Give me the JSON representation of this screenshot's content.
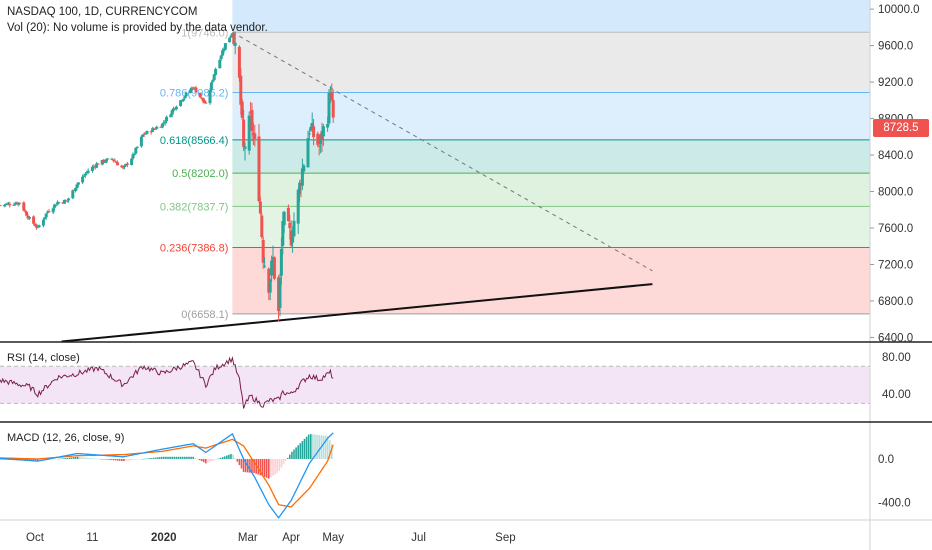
{
  "header": {
    "symbol_line": "NASDAQ 100, 1D, CURRENCYCOM",
    "volume_note": "Vol (20): No volume is provided by the data vendor."
  },
  "last_price": "8728.5",
  "colors": {
    "up": "#26a69a",
    "down": "#ef5350",
    "fib_1": "#bdbdbd",
    "fib_786": "#64b5f6",
    "fib_618": "#009688",
    "fib_5": "#4caf50",
    "fib_382": "#81c784",
    "fib_236": "#f44336",
    "fib_0": "#9e9e9e",
    "rsi_line": "#7b1f4a",
    "rsi_band": "#f3e5f5",
    "macd_line": "#2196f3",
    "signal_line": "#ff6d00"
  },
  "panes": {
    "rsi_label": "RSI (14, close)",
    "macd_label": "MACD (12, 26, close, 9)"
  },
  "chart_data": {
    "type": "candlestick",
    "price_axis": {
      "ticks": [
        "10000.0",
        "9600.0",
        "9200.0",
        "8800.0",
        "8400.0",
        "8000.0",
        "7600.0",
        "7200.0",
        "6800.0",
        "6400.0"
      ],
      "range": [
        6350,
        10100
      ]
    },
    "time_axis": {
      "ticks": [
        "Oct",
        "11",
        "2020",
        "Mar",
        "Apr",
        "May",
        "Jul",
        "Sep"
      ],
      "bold_tick": "2020"
    },
    "fib_levels": [
      {
        "ratio": 1,
        "value": 9746.0,
        "label": "1(9746.0)"
      },
      {
        "ratio": 0.786,
        "value": 9085.2,
        "label": "0.786(9085.2)"
      },
      {
        "ratio": 0.618,
        "value": 8566.4,
        "label": "0.618(8566.4)"
      },
      {
        "ratio": 0.5,
        "value": 8202.0,
        "label": "0.5(8202.0)"
      },
      {
        "ratio": 0.382,
        "value": 7837.7,
        "label": "0.382(7837.7)"
      },
      {
        "ratio": 0.236,
        "value": 7386.8,
        "label": "0.236(7386.8)"
      },
      {
        "ratio": 0,
        "value": 6658.1,
        "label": "0(6658.1)"
      }
    ],
    "fib_top_band": 10100,
    "price_series": [
      {
        "date": "2019-09-06",
        "close": 7850
      },
      {
        "date": "2019-09-20",
        "close": 7880
      },
      {
        "date": "2019-09-27",
        "close": 7700
      },
      {
        "date": "2019-10-03",
        "close": 7600
      },
      {
        "date": "2019-10-10",
        "close": 7780
      },
      {
        "date": "2019-10-17",
        "close": 7880
      },
      {
        "date": "2019-10-24",
        "close": 7900
      },
      {
        "date": "2019-10-31",
        "close": 8080
      },
      {
        "date": "2019-11-08",
        "close": 8230
      },
      {
        "date": "2019-11-15",
        "close": 8310
      },
      {
        "date": "2019-11-25",
        "close": 8360
      },
      {
        "date": "2019-12-03",
        "close": 8250
      },
      {
        "date": "2019-12-10",
        "close": 8390
      },
      {
        "date": "2019-12-17",
        "close": 8620
      },
      {
        "date": "2019-12-31",
        "close": 8740
      },
      {
        "date": "2020-01-10",
        "close": 8950
      },
      {
        "date": "2020-01-22",
        "close": 9150
      },
      {
        "date": "2020-01-31",
        "close": 8950
      },
      {
        "date": "2020-02-07",
        "close": 9350
      },
      {
        "date": "2020-02-14",
        "close": 9620
      },
      {
        "date": "2020-02-19",
        "close": 9746
      },
      {
        "date": "2020-02-24",
        "close": 9200
      },
      {
        "date": "2020-02-27",
        "close": 8450
      },
      {
        "date": "2020-03-03",
        "close": 8800
      },
      {
        "date": "2020-03-06",
        "close": 8500
      },
      {
        "date": "2020-03-09",
        "close": 8000
      },
      {
        "date": "2020-03-12",
        "close": 7300
      },
      {
        "date": "2020-03-16",
        "close": 6990
      },
      {
        "date": "2020-03-19",
        "close": 7250
      },
      {
        "date": "2020-03-23",
        "close": 6658
      },
      {
        "date": "2020-03-26",
        "close": 7700
      },
      {
        "date": "2020-04-01",
        "close": 7500
      },
      {
        "date": "2020-04-08",
        "close": 8150
      },
      {
        "date": "2020-04-14",
        "close": 8700
      },
      {
        "date": "2020-04-21",
        "close": 8500
      },
      {
        "date": "2020-04-27",
        "close": 8850
      },
      {
        "date": "2020-04-29",
        "close": 9150
      },
      {
        "date": "2020-05-01",
        "close": 8728.5
      }
    ],
    "trendlines": [
      {
        "style": "solid",
        "start": {
          "date": "2019-10-20",
          "price": 6355
        },
        "end": {
          "date": "2020-12-15",
          "price": 6985
        }
      },
      {
        "style": "dashed",
        "start": {
          "date": "2020-02-19",
          "price": 9746
        },
        "end": {
          "date": "2020-12-15",
          "price": 7130
        }
      }
    ],
    "rsi": {
      "ticks": [
        "80.00",
        "40.00"
      ],
      "range": [
        10,
        95
      ],
      "band": [
        70,
        30
      ],
      "values": [
        {
          "date": "2019-09-06",
          "value": 55
        },
        {
          "date": "2019-09-27",
          "value": 48
        },
        {
          "date": "2019-10-03",
          "value": 40
        },
        {
          "date": "2019-10-17",
          "value": 58
        },
        {
          "date": "2019-10-31",
          "value": 62
        },
        {
          "date": "2019-11-15",
          "value": 68
        },
        {
          "date": "2019-12-03",
          "value": 50
        },
        {
          "date": "2019-12-17",
          "value": 70
        },
        {
          "date": "2019-12-31",
          "value": 62
        },
        {
          "date": "2020-01-10",
          "value": 68
        },
        {
          "date": "2020-01-22",
          "value": 74
        },
        {
          "date": "2020-01-31",
          "value": 50
        },
        {
          "date": "2020-02-07",
          "value": 68
        },
        {
          "date": "2020-02-19",
          "value": 78
        },
        {
          "date": "2020-02-24",
          "value": 55
        },
        {
          "date": "2020-02-27",
          "value": 26
        },
        {
          "date": "2020-03-03",
          "value": 38
        },
        {
          "date": "2020-03-09",
          "value": 31
        },
        {
          "date": "2020-03-12",
          "value": 28
        },
        {
          "date": "2020-03-16",
          "value": 33
        },
        {
          "date": "2020-03-23",
          "value": 34
        },
        {
          "date": "2020-03-26",
          "value": 42
        },
        {
          "date": "2020-04-01",
          "value": 40
        },
        {
          "date": "2020-04-08",
          "value": 52
        },
        {
          "date": "2020-04-14",
          "value": 60
        },
        {
          "date": "2020-04-21",
          "value": 56
        },
        {
          "date": "2020-04-29",
          "value": 63
        },
        {
          "date": "2020-05-01",
          "value": 57
        }
      ]
    },
    "macd": {
      "ticks": [
        "0.0",
        "-400.0"
      ],
      "range": [
        -560,
        330
      ],
      "macd_line": [
        {
          "date": "2019-09-06",
          "value": 5
        },
        {
          "date": "2019-10-03",
          "value": -20
        },
        {
          "date": "2019-10-31",
          "value": 50
        },
        {
          "date": "2019-12-03",
          "value": 20
        },
        {
          "date": "2019-12-31",
          "value": 90
        },
        {
          "date": "2020-01-22",
          "value": 140
        },
        {
          "date": "2020-01-31",
          "value": 60
        },
        {
          "date": "2020-02-19",
          "value": 230
        },
        {
          "date": "2020-02-27",
          "value": 0
        },
        {
          "date": "2020-03-06",
          "value": -170
        },
        {
          "date": "2020-03-16",
          "value": -420
        },
        {
          "date": "2020-03-23",
          "value": -540
        },
        {
          "date": "2020-04-01",
          "value": -380
        },
        {
          "date": "2020-04-14",
          "value": -40
        },
        {
          "date": "2020-04-27",
          "value": 190
        },
        {
          "date": "2020-05-01",
          "value": 240
        }
      ],
      "signal_line": [
        {
          "date": "2019-09-06",
          "value": 10
        },
        {
          "date": "2019-10-03",
          "value": 0
        },
        {
          "date": "2019-10-31",
          "value": 30
        },
        {
          "date": "2019-12-03",
          "value": 40
        },
        {
          "date": "2019-12-31",
          "value": 70
        },
        {
          "date": "2020-01-22",
          "value": 120
        },
        {
          "date": "2020-01-31",
          "value": 100
        },
        {
          "date": "2020-02-19",
          "value": 180
        },
        {
          "date": "2020-02-27",
          "value": 120
        },
        {
          "date": "2020-03-06",
          "value": -40
        },
        {
          "date": "2020-03-16",
          "value": -240
        },
        {
          "date": "2020-03-23",
          "value": -420
        },
        {
          "date": "2020-04-01",
          "value": -440
        },
        {
          "date": "2020-04-14",
          "value": -270
        },
        {
          "date": "2020-04-27",
          "value": -20
        },
        {
          "date": "2020-05-01",
          "value": 130
        }
      ]
    }
  }
}
